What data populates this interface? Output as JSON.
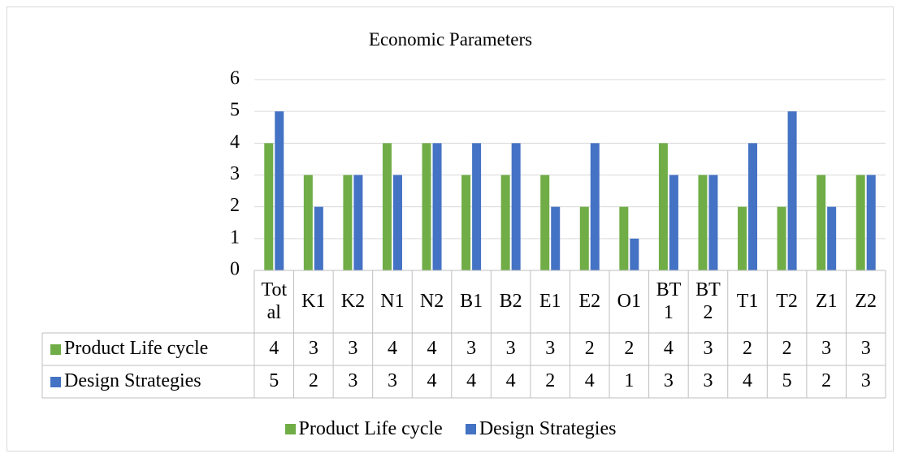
{
  "chart_data": {
    "type": "bar",
    "title": "Economic Parameters",
    "categories": [
      "Total",
      "K1",
      "K2",
      "N1",
      "N2",
      "B1",
      "B2",
      "E1",
      "E2",
      "O1",
      "BT1",
      "BT2",
      "T1",
      "T2",
      "Z1",
      "Z2"
    ],
    "series": [
      {
        "name": "Product Life cycle",
        "color": "#70ad47",
        "values": [
          4,
          3,
          3,
          4,
          4,
          3,
          3,
          3,
          2,
          2,
          4,
          3,
          2,
          2,
          3,
          3
        ]
      },
      {
        "name": "Design Strategies",
        "color": "#4472c4",
        "values": [
          5,
          2,
          3,
          3,
          4,
          4,
          4,
          2,
          4,
          1,
          3,
          3,
          4,
          5,
          2,
          3
        ]
      }
    ],
    "ylim": [
      0,
      6
    ],
    "yticks": [
      0,
      1,
      2,
      3,
      4,
      5,
      6
    ],
    "grid": true,
    "legend": "bottom",
    "data_table": true
  }
}
